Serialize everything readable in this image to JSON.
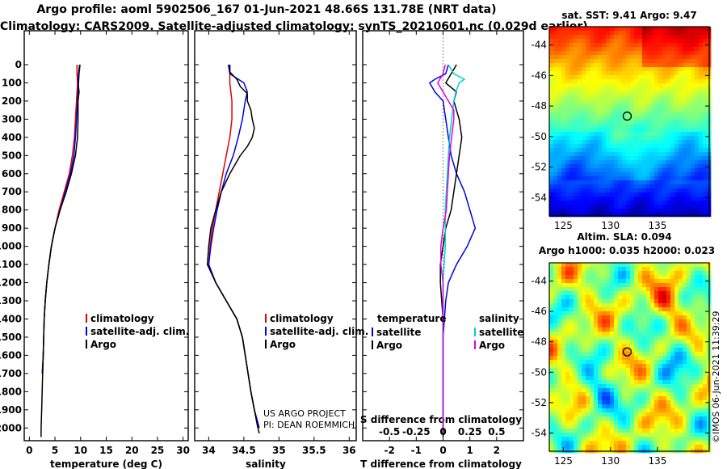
{
  "header": {
    "line1": "Argo profile: aoml 5902506_167 01-Jun-2021 48.66S 131.78E (NRT data)",
    "line2": "Climatology: CARS2009. Satellite-adjusted climatology: synTS_20210601.nc (0.029d earlier)"
  },
  "colors": {
    "climatology": "#e00000",
    "satellite": "#0000e0",
    "argo": "#000000",
    "t_diff_sat": "#0000e0",
    "t_diff_argo": "#000000",
    "s_diff_sat": "#00d0d0",
    "s_diff_argo": "#e000e0"
  },
  "chart_data": [
    {
      "type": "line",
      "name": "temperature profile",
      "xlabel": "temperature (deg C)",
      "xlim": [
        -1,
        31
      ],
      "xticks": [
        "0",
        "5",
        "10",
        "15",
        "20",
        "25",
        "30"
      ],
      "ylim": [
        0,
        2070
      ],
      "yticks": [
        "0",
        "100",
        "200",
        "300",
        "400",
        "500",
        "600",
        "700",
        "800",
        "900",
        "1000",
        "1100",
        "1200",
        "1300",
        "1400",
        "1500",
        "1600",
        "1700",
        "1800",
        "1900",
        "2000"
      ],
      "legend": [
        "climatology",
        "satellite-adj. clim.",
        "Argo"
      ],
      "series": [
        {
          "name": "climatology",
          "depth": [
            0,
            50,
            100,
            200,
            300,
            400,
            500,
            600,
            700,
            800,
            900,
            1000,
            1100,
            1200,
            1300,
            1400,
            1500,
            1600,
            1700
          ],
          "values": [
            9.3,
            9.3,
            9.4,
            9.2,
            9.0,
            8.8,
            8.4,
            7.8,
            6.8,
            5.8,
            5.0,
            4.3,
            3.8,
            3.4,
            3.1,
            2.9,
            2.8,
            2.7,
            2.6
          ]
        },
        {
          "name": "satellite-adj. clim.",
          "depth": [
            0,
            50,
            100,
            200,
            300,
            400,
            500,
            600,
            700,
            800,
            900,
            1000,
            1100,
            1200,
            1300,
            1400,
            1500,
            1600,
            1700
          ],
          "values": [
            9.9,
            9.7,
            9.6,
            9.4,
            9.2,
            9.0,
            8.7,
            8.0,
            7.0,
            6.0,
            5.0,
            4.3,
            3.8,
            3.4,
            3.1,
            2.9,
            2.8,
            2.7,
            2.5
          ]
        },
        {
          "name": "Argo",
          "depth": [
            0,
            50,
            100,
            150,
            200,
            300,
            400,
            500,
            600,
            700,
            800,
            900,
            1000,
            1100,
            1200,
            1300,
            1400,
            1500,
            1600,
            1700,
            1800,
            1900,
            2000,
            2050
          ],
          "values": [
            9.8,
            9.6,
            9.5,
            9.7,
            9.5,
            9.5,
            9.4,
            9.0,
            8.2,
            7.2,
            6.0,
            5.0,
            4.3,
            3.8,
            3.4,
            3.1,
            2.9,
            2.8,
            2.7,
            2.6,
            2.5,
            2.4,
            2.3,
            2.3
          ]
        }
      ]
    },
    {
      "type": "line",
      "name": "salinity profile",
      "xlabel": "salinity",
      "xlim": [
        33.8,
        36.1
      ],
      "xticks": [
        "34",
        "34.5",
        "35",
        "35.5",
        "36"
      ],
      "ylim": [
        0,
        2070
      ],
      "legend": [
        "climatology",
        "satellite-adj. clim.",
        "Argo"
      ],
      "annotation": [
        "US ARGO PROJECT",
        "PI: DEAN ROEMMICH"
      ],
      "series": [
        {
          "name": "climatology",
          "depth": [
            0,
            100,
            200,
            300,
            400,
            500,
            600,
            700,
            800,
            900,
            1000,
            1100,
            1200,
            1300,
            1400,
            1500,
            1600,
            1700,
            1800,
            1900,
            2000
          ],
          "values": [
            34.3,
            34.3,
            34.33,
            34.33,
            34.3,
            34.25,
            34.2,
            34.15,
            34.1,
            34.05,
            34.02,
            34.0,
            34.1,
            34.25,
            34.4,
            34.48,
            34.52,
            34.56,
            34.6,
            34.65,
            34.7
          ]
        },
        {
          "name": "satellite-adj. clim.",
          "depth": [
            0,
            50,
            100,
            150,
            200,
            300,
            400,
            500,
            600,
            700,
            800,
            900,
            1000,
            1100,
            1200,
            1300,
            1400,
            1500,
            1600,
            1700,
            1800,
            1900,
            2000
          ],
          "values": [
            34.28,
            34.3,
            34.5,
            34.55,
            34.52,
            34.48,
            34.42,
            34.35,
            34.25,
            34.18,
            34.12,
            34.07,
            34.03,
            34.0,
            34.1,
            34.25,
            34.4,
            34.48,
            34.52,
            34.56,
            34.6,
            34.65,
            34.72
          ]
        },
        {
          "name": "Argo",
          "depth": [
            0,
            40,
            80,
            120,
            160,
            200,
            250,
            300,
            350,
            400,
            450,
            500,
            600,
            700,
            800,
            900,
            1000,
            1100,
            1200,
            1300,
            1400,
            1500,
            1600,
            1700,
            1800,
            1900,
            2000,
            2030
          ],
          "values": [
            34.3,
            34.3,
            34.4,
            34.45,
            34.55,
            34.55,
            34.6,
            34.62,
            34.65,
            34.62,
            34.55,
            34.45,
            34.3,
            34.18,
            34.1,
            34.03,
            34.0,
            33.98,
            34.1,
            34.25,
            34.4,
            34.48,
            34.52,
            34.56,
            34.6,
            34.65,
            34.7,
            34.72
          ]
        }
      ]
    },
    {
      "type": "line",
      "name": "difference from climatology",
      "xlabel": "T difference from climatology",
      "xlim": [
        -3,
        3
      ],
      "xticks": [
        "-2",
        "-1",
        "0",
        "1",
        "2"
      ],
      "secondary_xlabel": "S difference from climatology",
      "secondary_xlim": [
        -0.75,
        0.75
      ],
      "secondary_xticks": [
        "-0.5",
        "-0.25",
        "0",
        "0.25",
        "0.5"
      ],
      "ylim": [
        0,
        2070
      ],
      "legend_title_left": "temperature",
      "legend_title_right": "salinity",
      "legend": [
        "satellite",
        "Argo",
        "satellite",
        "Argo"
      ],
      "series": [
        {
          "name": "T satellite",
          "axis": "T",
          "depth": [
            0,
            50,
            80,
            100,
            150,
            200,
            300,
            400,
            500,
            600,
            700,
            800,
            900,
            1000,
            1100,
            1200,
            1300,
            1400,
            1500,
            1600,
            1700,
            1800,
            1900,
            2000
          ],
          "values": [
            0.2,
            0.1,
            -0.3,
            -0.5,
            -0.3,
            0.0,
            0.1,
            0.2,
            0.3,
            0.5,
            0.8,
            1.0,
            1.2,
            0.9,
            0.5,
            0.2,
            0.1,
            0.05,
            0.0,
            0.0,
            0.0,
            0.0,
            0.0,
            0.0
          ]
        },
        {
          "name": "T Argo",
          "axis": "T",
          "depth": [
            0,
            50,
            100,
            150,
            200,
            300,
            400,
            500,
            600,
            700,
            800,
            900,
            1000,
            1100,
            1200,
            1300,
            1400,
            1500,
            1600,
            1700,
            1800,
            1900,
            2000,
            2050
          ],
          "values": [
            0.5,
            0.3,
            0.1,
            0.5,
            0.4,
            0.6,
            0.7,
            0.6,
            0.5,
            0.4,
            0.3,
            0.1,
            0.0,
            -0.1,
            -0.1,
            -0.05,
            0.0,
            0.0,
            0.0,
            0.0,
            0.0,
            0.0,
            0.0,
            0.0
          ]
        },
        {
          "name": "S satellite",
          "axis": "S",
          "depth": [
            0,
            50,
            80,
            100,
            150,
            200,
            300,
            400,
            500,
            600,
            700,
            800,
            900,
            1000,
            1100,
            1200,
            1300,
            1400,
            1500,
            1600,
            1700,
            1800,
            1900,
            2000
          ],
          "values": [
            0.05,
            0.1,
            0.2,
            0.15,
            0.12,
            0.1,
            0.08,
            0.06,
            0.05,
            0.04,
            0.03,
            0.02,
            0.02,
            0.02,
            0.01,
            0.0,
            0.0,
            0.0,
            0.0,
            0.0,
            0.0,
            0.0,
            0.0,
            0.0
          ]
        },
        {
          "name": "S Argo",
          "axis": "S",
          "depth": [
            0,
            50,
            100,
            150,
            200,
            250,
            300,
            400,
            500,
            600,
            700,
            800,
            900,
            1000,
            1100,
            1200,
            1300,
            1400,
            1500,
            1600,
            1700,
            1800,
            1900,
            2000
          ],
          "values": [
            0.02,
            0.0,
            -0.05,
            0.0,
            0.05,
            0.1,
            0.1,
            0.08,
            0.06,
            0.05,
            0.04,
            0.03,
            0.0,
            -0.02,
            -0.02,
            0.0,
            0.0,
            0.0,
            0.0,
            0.0,
            0.0,
            0.0,
            0.0,
            0.0
          ]
        }
      ]
    },
    {
      "type": "heatmap",
      "name": "SST map",
      "title": "sat. SST: 9.41 Argo: 9.47",
      "xticks": [
        "125",
        "130",
        "135"
      ],
      "yticks": [
        "-44",
        "-46",
        "-48",
        "-50",
        "-52",
        "-54"
      ],
      "xlim": [
        123.5,
        140.5
      ],
      "ylim": [
        -55.2,
        -42.8
      ],
      "marker": {
        "lon": 131.78,
        "lat": -48.66
      }
    },
    {
      "type": "heatmap",
      "name": "SLA map",
      "title": "Altim. SLA: 0.094",
      "subtitle": "Argo h1000: 0.035 h2000: 0.023",
      "xticks": [
        "125",
        "130",
        "135"
      ],
      "yticks": [
        "-44",
        "-46",
        "-48",
        "-50",
        "-52",
        "-54"
      ],
      "xlim": [
        123.5,
        140.5
      ],
      "ylim": [
        -55.2,
        -42.8
      ],
      "marker": {
        "lon": 131.78,
        "lat": -48.66
      }
    }
  ],
  "stamp": "©IMOS 06-Jun-2021 11:39:29"
}
